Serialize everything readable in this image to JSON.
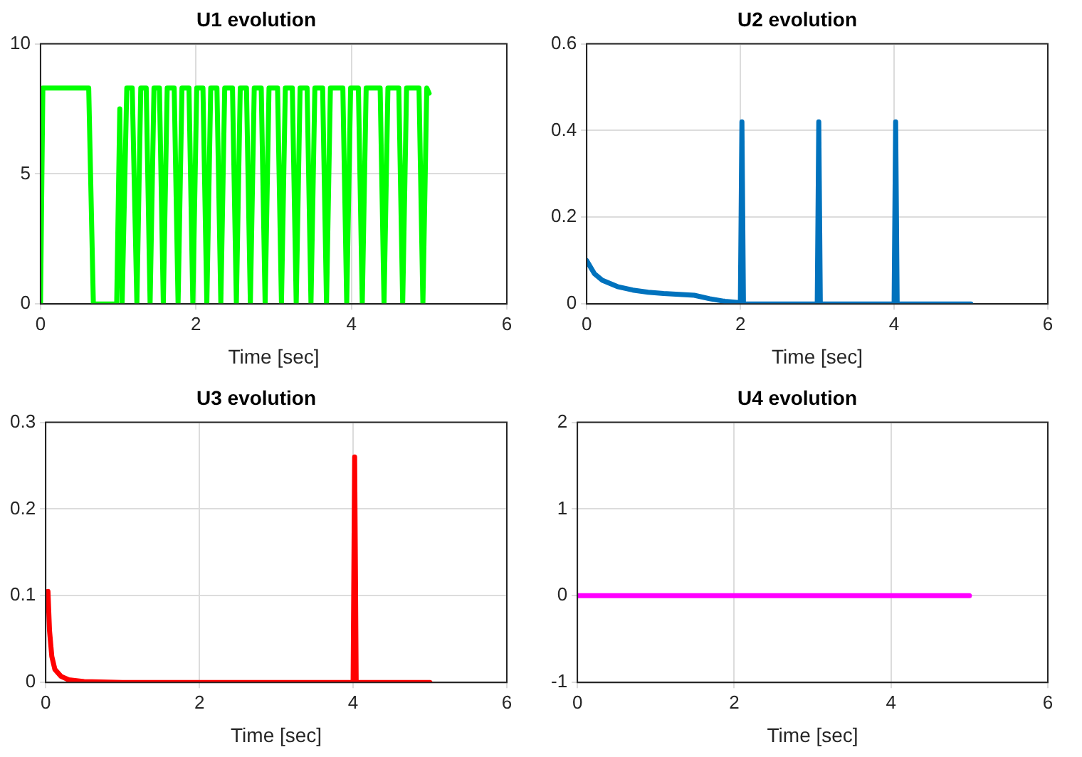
{
  "chart_data": [
    {
      "type": "line",
      "title": "U1 evolution",
      "xlabel": "Time [sec]",
      "xlim": [
        0,
        6
      ],
      "xticks": [
        0,
        2,
        4,
        6
      ],
      "ylim": [
        0,
        10
      ],
      "yticks": [
        0,
        5,
        10
      ],
      "grid": true,
      "series": [
        {
          "color": "#00ff00",
          "x": [
            0,
            0.03,
            0.62,
            0.68,
            0.98,
            1.02,
            1.05,
            1.11,
            1.18,
            1.24,
            1.29,
            1.36,
            1.41,
            1.46,
            1.53,
            1.58,
            1.63,
            1.72,
            1.77,
            1.82,
            1.91,
            1.96,
            2.01,
            2.09,
            2.14,
            2.19,
            2.27,
            2.32,
            2.37,
            2.47,
            2.52,
            2.57,
            2.65,
            2.7,
            2.75,
            2.84,
            2.89,
            2.94,
            3.05,
            3.1,
            3.15,
            3.24,
            3.29,
            3.34,
            3.43,
            3.48,
            3.53,
            3.63,
            3.68,
            3.73,
            3.89,
            3.94,
            3.99,
            4.09,
            4.14,
            4.19,
            4.37,
            4.42,
            4.47,
            4.61,
            4.66,
            4.71,
            4.87,
            4.92,
            4.97,
            5.0
          ],
          "values": [
            0,
            8.3,
            8.3,
            0,
            0,
            7.5,
            0,
            8.3,
            8.3,
            0,
            8.3,
            8.3,
            0,
            8.3,
            8.3,
            0,
            8.3,
            8.3,
            0,
            8.3,
            8.3,
            0,
            8.3,
            8.3,
            0,
            8.3,
            8.3,
            0,
            8.3,
            8.3,
            0,
            8.3,
            8.3,
            0,
            8.3,
            8.3,
            0,
            8.3,
            8.3,
            0,
            8.3,
            8.3,
            0,
            8.3,
            8.3,
            0,
            8.3,
            8.3,
            0,
            8.3,
            8.3,
            0,
            8.3,
            8.3,
            0,
            8.3,
            8.3,
            0,
            8.3,
            8.3,
            0,
            8.3,
            8.3,
            0,
            8.3,
            8.1
          ]
        }
      ]
    },
    {
      "type": "line",
      "title": "U2 evolution",
      "xlabel": "Time [sec]",
      "xlim": [
        0,
        6
      ],
      "xticks": [
        0,
        2,
        4,
        6
      ],
      "ylim": [
        0,
        0.6
      ],
      "yticks": [
        0,
        0.2,
        0.4,
        0.6
      ],
      "grid": true,
      "series": [
        {
          "color": "#0072bd",
          "x": [
            0,
            0.1,
            0.2,
            0.4,
            0.6,
            0.8,
            1.0,
            1.4,
            1.6,
            1.8,
            2.0,
            2.02,
            2.04,
            3.0,
            3.02,
            3.04,
            4.0,
            4.02,
            4.04,
            5.0
          ],
          "values": [
            0.1,
            0.07,
            0.055,
            0.04,
            0.032,
            0.027,
            0.024,
            0.02,
            0.012,
            0.006,
            0.003,
            0.42,
            0,
            0,
            0.42,
            0,
            0,
            0.42,
            0,
            0
          ]
        }
      ]
    },
    {
      "type": "line",
      "title": "U3 evolution",
      "xlabel": "Time [sec]",
      "xlim": [
        0,
        6
      ],
      "xticks": [
        0,
        2,
        4,
        6
      ],
      "ylim": [
        0,
        0.3
      ],
      "yticks": [
        0,
        0.1,
        0.2,
        0.3
      ],
      "grid": true,
      "series": [
        {
          "color": "#ff0000",
          "x": [
            0.03,
            0.05,
            0.08,
            0.12,
            0.2,
            0.3,
            0.5,
            1.0,
            4.0,
            4.02,
            4.04,
            5.0
          ],
          "values": [
            0.105,
            0.06,
            0.03,
            0.015,
            0.007,
            0.003,
            0.001,
            0,
            0,
            0.26,
            0,
            0
          ]
        }
      ]
    },
    {
      "type": "line",
      "title": "U4 evolution",
      "xlabel": "Time [sec]",
      "xlim": [
        0,
        6
      ],
      "xticks": [
        0,
        2,
        4,
        6
      ],
      "ylim": [
        -1,
        2
      ],
      "yticks": [
        -1,
        0,
        1,
        2
      ],
      "grid": true,
      "series": [
        {
          "color": "#ff00ff",
          "x": [
            0,
            5
          ],
          "values": [
            0,
            0
          ]
        }
      ]
    }
  ]
}
